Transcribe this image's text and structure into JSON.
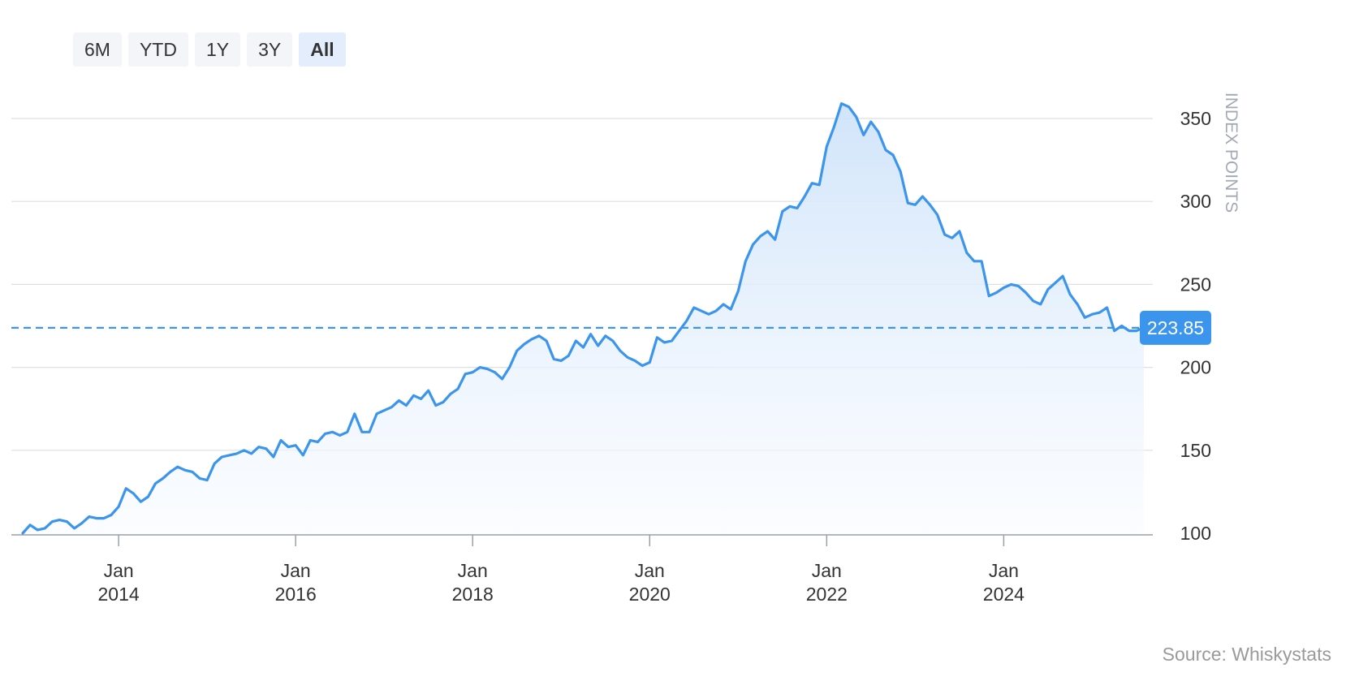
{
  "range_selector": {
    "buttons": [
      {
        "label": "6M",
        "active": false
      },
      {
        "label": "YTD",
        "active": false
      },
      {
        "label": "1Y",
        "active": false
      },
      {
        "label": "3Y",
        "active": false
      },
      {
        "label": "All",
        "active": true
      }
    ]
  },
  "source_label": "Source: Whiskystats",
  "colors": {
    "line": "#3b95ec",
    "area_top": "#cfe3fa",
    "area_bottom": "#f8fbff",
    "grid": "#dcdfe5",
    "axis": "#9aa0aa",
    "current_value_bg": "#3b95ec",
    "axis_title": "#a3a9b3"
  },
  "chart_data": {
    "type": "area",
    "title": "",
    "ylabel": "INDEX POINTS",
    "xlabel": "",
    "ylim": [
      100,
      370
    ],
    "y_ticks": [
      100,
      150,
      200,
      250,
      300,
      350
    ],
    "x_ticks": [
      {
        "date": "2014-01",
        "label1": "Jan",
        "label2": "2014"
      },
      {
        "date": "2016-01",
        "label1": "Jan",
        "label2": "2016"
      },
      {
        "date": "2018-01",
        "label1": "Jan",
        "label2": "2018"
      },
      {
        "date": "2020-01",
        "label1": "Jan",
        "label2": "2020"
      },
      {
        "date": "2022-01",
        "label1": "Jan",
        "label2": "2022"
      },
      {
        "date": "2024-01",
        "label1": "Jan",
        "label2": "2024"
      }
    ],
    "current_value": 223.85,
    "current_value_label": "223.85",
    "grid": true,
    "series": [
      {
        "points": [
          [
            "2012-12",
            100
          ],
          [
            "2013-01",
            105
          ],
          [
            "2013-02",
            102
          ],
          [
            "2013-03",
            103
          ],
          [
            "2013-04",
            107
          ],
          [
            "2013-05",
            108
          ],
          [
            "2013-06",
            107
          ],
          [
            "2013-07",
            103
          ],
          [
            "2013-08",
            106
          ],
          [
            "2013-09",
            110
          ],
          [
            "2013-10",
            109
          ],
          [
            "2013-11",
            109
          ],
          [
            "2013-12",
            111
          ],
          [
            "2014-01",
            116
          ],
          [
            "2014-02",
            127
          ],
          [
            "2014-03",
            124
          ],
          [
            "2014-04",
            119
          ],
          [
            "2014-05",
            122
          ],
          [
            "2014-06",
            130
          ],
          [
            "2014-07",
            133
          ],
          [
            "2014-08",
            137
          ],
          [
            "2014-09",
            140
          ],
          [
            "2014-10",
            138
          ],
          [
            "2014-11",
            137
          ],
          [
            "2014-12",
            133
          ],
          [
            "2015-01",
            132
          ],
          [
            "2015-02",
            142
          ],
          [
            "2015-03",
            146
          ],
          [
            "2015-04",
            147
          ],
          [
            "2015-05",
            148
          ],
          [
            "2015-06",
            150
          ],
          [
            "2015-07",
            148
          ],
          [
            "2015-08",
            152
          ],
          [
            "2015-09",
            151
          ],
          [
            "2015-10",
            146
          ],
          [
            "2015-11",
            156
          ],
          [
            "2015-12",
            152
          ],
          [
            "2016-01",
            153
          ],
          [
            "2016-02",
            147
          ],
          [
            "2016-03",
            156
          ],
          [
            "2016-04",
            155
          ],
          [
            "2016-05",
            160
          ],
          [
            "2016-06",
            161
          ],
          [
            "2016-07",
            159
          ],
          [
            "2016-08",
            161
          ],
          [
            "2016-09",
            172
          ],
          [
            "2016-10",
            161
          ],
          [
            "2016-11",
            161
          ],
          [
            "2016-12",
            172
          ],
          [
            "2017-01",
            174
          ],
          [
            "2017-02",
            176
          ],
          [
            "2017-03",
            180
          ],
          [
            "2017-04",
            177
          ],
          [
            "2017-05",
            183
          ],
          [
            "2017-06",
            181
          ],
          [
            "2017-07",
            186
          ],
          [
            "2017-08",
            177
          ],
          [
            "2017-09",
            179
          ],
          [
            "2017-10",
            184
          ],
          [
            "2017-11",
            187
          ],
          [
            "2017-12",
            196
          ],
          [
            "2018-01",
            197
          ],
          [
            "2018-02",
            200
          ],
          [
            "2018-03",
            199
          ],
          [
            "2018-04",
            197
          ],
          [
            "2018-05",
            193
          ],
          [
            "2018-06",
            200
          ],
          [
            "2018-07",
            210
          ],
          [
            "2018-08",
            214
          ],
          [
            "2018-09",
            217
          ],
          [
            "2018-10",
            219
          ],
          [
            "2018-11",
            216
          ],
          [
            "2018-12",
            205
          ],
          [
            "2019-01",
            204
          ],
          [
            "2019-02",
            207
          ],
          [
            "2019-03",
            216
          ],
          [
            "2019-04",
            212
          ],
          [
            "2019-05",
            220
          ],
          [
            "2019-06",
            213
          ],
          [
            "2019-07",
            219
          ],
          [
            "2019-08",
            216
          ],
          [
            "2019-09",
            210
          ],
          [
            "2019-10",
            206
          ],
          [
            "2019-11",
            204
          ],
          [
            "2019-12",
            201
          ],
          [
            "2020-01",
            203
          ],
          [
            "2020-02",
            218
          ],
          [
            "2020-03",
            215
          ],
          [
            "2020-04",
            216
          ],
          [
            "2020-05",
            222
          ],
          [
            "2020-06",
            228
          ],
          [
            "2020-07",
            236
          ],
          [
            "2020-08",
            234
          ],
          [
            "2020-09",
            232
          ],
          [
            "2020-10",
            234
          ],
          [
            "2020-11",
            238
          ],
          [
            "2020-12",
            235
          ],
          [
            "2021-01",
            246
          ],
          [
            "2021-02",
            264
          ],
          [
            "2021-03",
            274
          ],
          [
            "2021-04",
            279
          ],
          [
            "2021-05",
            282
          ],
          [
            "2021-06",
            277
          ],
          [
            "2021-07",
            294
          ],
          [
            "2021-08",
            297
          ],
          [
            "2021-09",
            296
          ],
          [
            "2021-10",
            303
          ],
          [
            "2021-11",
            311
          ],
          [
            "2021-12",
            310
          ],
          [
            "2022-01",
            333
          ],
          [
            "2022-02",
            345
          ],
          [
            "2022-03",
            359
          ],
          [
            "2022-04",
            357
          ],
          [
            "2022-05",
            351
          ],
          [
            "2022-06",
            340
          ],
          [
            "2022-07",
            348
          ],
          [
            "2022-08",
            342
          ],
          [
            "2022-09",
            331
          ],
          [
            "2022-10",
            328
          ],
          [
            "2022-11",
            318
          ],
          [
            "2022-12",
            299
          ],
          [
            "2023-01",
            298
          ],
          [
            "2023-02",
            303
          ],
          [
            "2023-03",
            298
          ],
          [
            "2023-04",
            292
          ],
          [
            "2023-05",
            280
          ],
          [
            "2023-06",
            278
          ],
          [
            "2023-07",
            282
          ],
          [
            "2023-08",
            269
          ],
          [
            "2023-09",
            264
          ],
          [
            "2023-10",
            264
          ],
          [
            "2023-11",
            243
          ],
          [
            "2023-12",
            245
          ],
          [
            "2024-01",
            248
          ],
          [
            "2024-02",
            250
          ],
          [
            "2024-03",
            249
          ],
          [
            "2024-04",
            245
          ],
          [
            "2024-05",
            240
          ],
          [
            "2024-06",
            238
          ],
          [
            "2024-07",
            247
          ],
          [
            "2024-08",
            251
          ],
          [
            "2024-09",
            255
          ],
          [
            "2024-10",
            244
          ],
          [
            "2024-11",
            238
          ],
          [
            "2024-12",
            230
          ],
          [
            "2025-01",
            232
          ],
          [
            "2025-02",
            233
          ],
          [
            "2025-03",
            236
          ],
          [
            "2025-04",
            222
          ],
          [
            "2025-05",
            225
          ],
          [
            "2025-06",
            222
          ],
          [
            "2025-07",
            222
          ],
          [
            "2025-08",
            224
          ]
        ]
      }
    ]
  }
}
